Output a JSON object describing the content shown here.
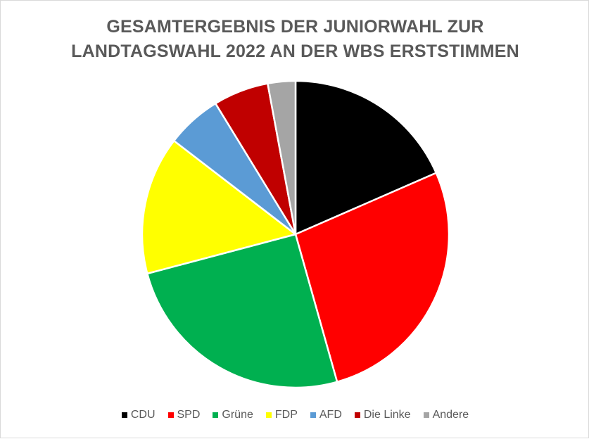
{
  "chart_data": {
    "type": "pie",
    "title_lines": [
      "GESAMTERGEBNIS DER JUNIORWAHL ZUR",
      "LANDTAGSWAHL 2022 AN DER WBS ERSTSTIMMEN"
    ],
    "categories": [
      "CDU",
      "SPD",
      "Grüne",
      "FDP",
      "AFD",
      "Die Linke",
      "Andere"
    ],
    "values": [
      19,
      28,
      26,
      15,
      6,
      6,
      3
    ],
    "colors": [
      "#000000",
      "#ff0000",
      "#00b050",
      "#ffff00",
      "#5b9bd5",
      "#c00000",
      "#a5a5a5"
    ],
    "legend_position": "bottom"
  }
}
